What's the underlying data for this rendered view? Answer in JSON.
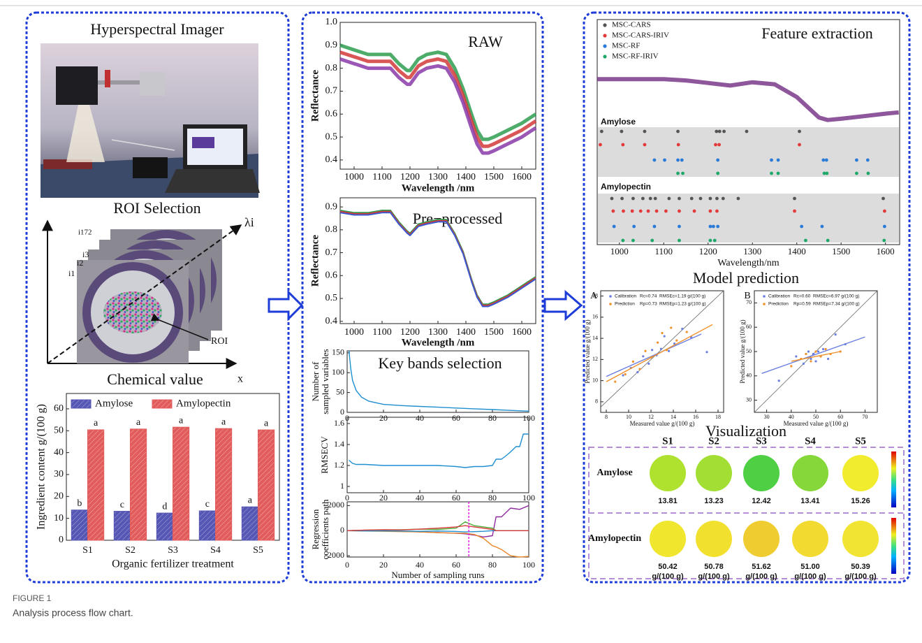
{
  "figure": {
    "label": "FIGURE 1",
    "caption": "Analysis process flow chart.",
    "acquisition": {
      "title": "Hyperspectral Imager",
      "roi_title": "ROI Selection",
      "chemical_title": "Chemical value",
      "roi_labels": {
        "lambda": "λi",
        "i172": "i172",
        "i3": "i3",
        "i2": "i2",
        "i1": "i1",
        "roi": "ROI",
        "axis": "x"
      }
    },
    "model_title": "Model prediction",
    "visualization": {
      "title": "Visualization",
      "columns": [
        "S1",
        "S2",
        "S3",
        "S4",
        "S5"
      ],
      "rows": [
        {
          "label": "Amylose",
          "values": [
            "13.81",
            "13.23",
            "12.42",
            "13.41",
            "15.26"
          ],
          "colors": [
            "#aee22e",
            "#a2de34",
            "#4ecf44",
            "#86d83a",
            "#f2ec2e"
          ]
        },
        {
          "label": "Amylopectin",
          "values": [
            "50.42",
            "50.78",
            "51.62",
            "51.00",
            "50.39"
          ],
          "unit": "g/(100 g)",
          "colors": [
            "#f0e62e",
            "#f2e02e",
            "#efcc30",
            "#f2da30",
            "#f2e432"
          ]
        }
      ]
    }
  },
  "chart_data": [
    {
      "type": "bar",
      "xlabel": "Organic fertilizer treatment",
      "ylabel": "Ingredient content g/(100 g)",
      "categories": [
        "S1",
        "S2",
        "S3",
        "S4",
        "S5"
      ],
      "series": [
        {
          "name": "Amylose",
          "color": "#5656b4",
          "values": [
            13.81,
            13.23,
            12.42,
            13.41,
            15.26
          ],
          "annotations": [
            "b",
            "c",
            "d",
            "c",
            "a"
          ]
        },
        {
          "name": "Amylopectin",
          "color": "#e25c5c",
          "values": [
            50.42,
            50.78,
            51.62,
            51.0,
            50.39
          ],
          "annotations": [
            "a",
            "a",
            "a",
            "a",
            "a"
          ]
        }
      ],
      "ylim": [
        0,
        67
      ],
      "yticks": [
        0,
        10,
        20,
        30,
        40,
        50,
        60
      ]
    },
    {
      "type": "line",
      "title": "RAW",
      "xlabel": "Wavelength /nm",
      "ylabel": "Reflectance",
      "x": [
        950,
        1000,
        1050,
        1100,
        1130,
        1160,
        1190,
        1200,
        1230,
        1260,
        1300,
        1330,
        1360,
        1390,
        1420,
        1440,
        1460,
        1480,
        1500,
        1550,
        1600,
        1650
      ],
      "series": [
        {
          "color": "#2f9e50",
          "values": [
            0.9,
            0.88,
            0.86,
            0.86,
            0.86,
            0.82,
            0.79,
            0.79,
            0.84,
            0.86,
            0.87,
            0.86,
            0.8,
            0.71,
            0.6,
            0.53,
            0.49,
            0.49,
            0.5,
            0.53,
            0.56,
            0.6
          ]
        },
        {
          "color": "#d23a3a",
          "values": [
            0.87,
            0.85,
            0.83,
            0.83,
            0.83,
            0.79,
            0.76,
            0.76,
            0.81,
            0.83,
            0.84,
            0.83,
            0.77,
            0.68,
            0.57,
            0.5,
            0.46,
            0.46,
            0.47,
            0.5,
            0.53,
            0.57
          ]
        },
        {
          "color": "#8a3aa8",
          "values": [
            0.84,
            0.82,
            0.8,
            0.8,
            0.8,
            0.76,
            0.73,
            0.73,
            0.78,
            0.8,
            0.81,
            0.8,
            0.74,
            0.65,
            0.54,
            0.47,
            0.43,
            0.43,
            0.44,
            0.47,
            0.5,
            0.54
          ]
        }
      ],
      "xlim": [
        950,
        1650
      ],
      "xticks": [
        1000,
        1100,
        1200,
        1300,
        1400,
        1500,
        1600
      ],
      "ylim": [
        0.36,
        1.0
      ],
      "yticks": [
        0.4,
        0.5,
        0.6,
        0.7,
        0.8,
        0.9,
        {
          "value": 1.0,
          "label": "1.0"
        }
      ]
    },
    {
      "type": "line",
      "title": "Pre−processed",
      "xlabel": "Wavelength /nm",
      "ylabel": "Reflectance",
      "x": [
        950,
        1000,
        1050,
        1100,
        1130,
        1160,
        1190,
        1200,
        1230,
        1260,
        1300,
        1330,
        1360,
        1390,
        1420,
        1440,
        1460,
        1480,
        1500,
        1550,
        1600,
        1650
      ],
      "series": [
        {
          "color": "#2f9e50",
          "values": [
            0.885,
            0.875,
            0.875,
            0.885,
            0.885,
            0.835,
            0.795,
            0.785,
            0.825,
            0.835,
            0.845,
            0.845,
            0.785,
            0.705,
            0.585,
            0.515,
            0.475,
            0.475,
            0.485,
            0.515,
            0.555,
            0.595
          ]
        },
        {
          "color": "#d23a3a",
          "values": [
            0.88,
            0.87,
            0.87,
            0.88,
            0.88,
            0.83,
            0.79,
            0.78,
            0.82,
            0.83,
            0.84,
            0.84,
            0.78,
            0.7,
            0.58,
            0.51,
            0.47,
            0.47,
            0.48,
            0.51,
            0.55,
            0.59
          ]
        },
        {
          "color": "#3a5ad0",
          "values": [
            0.875,
            0.865,
            0.865,
            0.875,
            0.875,
            0.825,
            0.785,
            0.775,
            0.815,
            0.825,
            0.835,
            0.835,
            0.775,
            0.695,
            0.575,
            0.505,
            0.465,
            0.465,
            0.475,
            0.505,
            0.545,
            0.585
          ]
        }
      ],
      "xlim": [
        950,
        1650
      ],
      "xticks": [
        1000,
        1100,
        1200,
        1300,
        1400,
        1500,
        1600
      ],
      "ylim": [
        0.39,
        0.94
      ],
      "yticks": [
        0.4,
        0.5,
        0.6,
        0.7,
        0.8,
        0.9
      ]
    },
    {
      "type": "line",
      "title": "Key bands selection",
      "ylabel": [
        "Number of",
        "sampled variables"
      ],
      "x": [
        1,
        2,
        3,
        5,
        8,
        12,
        20,
        30,
        40,
        50,
        60,
        70,
        80,
        90,
        100
      ],
      "series": [
        {
          "color": "#1f8fd0",
          "values": [
            155,
            110,
            80,
            55,
            38,
            28,
            20,
            17,
            15,
            13,
            11,
            9,
            7,
            5,
            3
          ]
        }
      ],
      "xlim": [
        0,
        100
      ],
      "xticks": [
        0,
        20,
        40,
        60,
        80,
        100
      ],
      "ylim": [
        0,
        155
      ],
      "yticks": [
        0,
        50,
        100,
        150
      ]
    },
    {
      "type": "line",
      "ylabel": "RMSECV",
      "x": [
        1,
        3,
        5,
        10,
        20,
        30,
        40,
        50,
        60,
        65,
        70,
        75,
        80,
        82,
        85,
        88,
        90,
        93,
        95,
        97,
        100
      ],
      "series": [
        {
          "color": "#1f8fd0",
          "values": [
            1.25,
            1.22,
            1.21,
            1.21,
            1.2,
            1.2,
            1.2,
            1.2,
            1.19,
            1.18,
            1.19,
            1.19,
            1.2,
            1.26,
            1.26,
            1.3,
            1.33,
            1.38,
            1.38,
            1.5,
            1.5
          ]
        }
      ],
      "xlim": [
        0,
        100
      ],
      "xticks": [
        0,
        20,
        40,
        60,
        80,
        100
      ],
      "ylim": [
        0.94,
        1.66
      ],
      "yticks": [
        1,
        1.2,
        1.4,
        1.6
      ]
    },
    {
      "type": "line",
      "ylabel": [
        "Regression",
        "coefficients path"
      ],
      "xlabel": "Number of sampling runs",
      "x": [
        0,
        10,
        20,
        30,
        40,
        50,
        60,
        65,
        70,
        75,
        80,
        82,
        85,
        90,
        95,
        100
      ],
      "series": [
        {
          "color": "#8e2a9e",
          "values": [
            0,
            20,
            10,
            -50,
            -100,
            -150,
            -200,
            -250,
            -350,
            -500,
            -400,
            1100,
            1100,
            1800,
            1700,
            2000
          ]
        },
        {
          "color": "#e8862a",
          "values": [
            0,
            -30,
            -50,
            -80,
            -100,
            -150,
            -200,
            -200,
            -300,
            -600,
            -1200,
            -1300,
            -1500,
            -2000,
            -2100,
            -2050
          ]
        },
        {
          "color": "#4cae3a",
          "values": [
            0,
            40,
            60,
            80,
            120,
            100,
            200,
            700,
            400,
            300,
            200,
            0,
            0,
            0,
            0,
            0
          ]
        },
        {
          "color": "#1f8fd0",
          "values": [
            0,
            -20,
            -10,
            -30,
            -50,
            -30,
            -60,
            -100,
            -80,
            -50,
            0,
            0,
            0,
            0,
            0,
            0
          ]
        },
        {
          "color": "#d83a3a",
          "values": [
            0,
            50,
            80,
            60,
            120,
            200,
            300,
            400,
            300,
            200,
            100,
            0,
            0,
            0,
            0,
            0
          ]
        }
      ],
      "marker_x": 67,
      "xlim": [
        0,
        100
      ],
      "xticks": [
        0,
        20,
        40,
        60,
        80,
        100
      ],
      "ylim": [
        -2100,
        2300
      ],
      "yticks": [
        -2000,
        0,
        2000
      ]
    },
    {
      "type": "feature",
      "title": "Feature extraction",
      "xlabel": "Wavelength/nm",
      "xlim": [
        950,
        1632
      ],
      "xticks": [
        1000,
        1100,
        1200,
        1300,
        1400,
        1500,
        1600
      ],
      "spectrum": {
        "color": "#7a3a8a",
        "x": [
          950,
          1000,
          1100,
          1150,
          1200,
          1250,
          1300,
          1350,
          1400,
          1450,
          1470,
          1500,
          1550,
          1600,
          1630
        ],
        "values": [
          0.79,
          0.79,
          0.79,
          0.785,
          0.775,
          0.765,
          0.778,
          0.77,
          0.72,
          0.64,
          0.63,
          0.635,
          0.645,
          0.655,
          0.66
        ]
      },
      "ylim": [
        0.58,
        0.84
      ],
      "groups": [
        "Amylose",
        "Amylopectin"
      ],
      "series": [
        {
          "name": "MSC-CARS",
          "color": "#555555",
          "positions": [
            [
              960,
              1005,
              1057,
              1132,
              1219,
              1226,
              1236,
              1287,
              1406
            ],
            [
              983,
              1006,
              1031,
              1053,
              1070,
              1081,
              1112,
              1135,
              1163,
              1183,
              1205,
              1220,
              1234,
              1268,
              1395,
              1595
            ]
          ]
        },
        {
          "name": "MSC-CARS-IRIV",
          "color": "#e23a3a",
          "positions": [
            [
              957,
              1008,
              1057,
              1133,
              1217,
              1225,
              1406
            ],
            [
              986,
              1009,
              1029,
              1048,
              1065,
              1084,
              1105,
              1135,
              1169,
              1205,
              1220,
              1395,
              1598
            ]
          ]
        },
        {
          "name": "MSC-RF",
          "color": "#2a7ad8",
          "positions": [
            [
              1079,
              1102,
              1132,
              1141,
              1222,
              1343,
              1358,
              1460,
              1467,
              1535,
              1560
            ],
            [
              988,
              1033,
              1079,
              1135,
              1205,
              1212,
              1222,
              1411,
              1457,
              1598
            ]
          ]
        },
        {
          "name": "MSC-RF-IRIV",
          "color": "#1fa86a",
          "positions": [
            [
              1132,
              1143,
              1222,
              1343,
              1358,
              1462,
              1468,
              1535,
              1561
            ],
            [
              1008,
              1031,
              1074,
              1135,
              1205,
              1215,
              1420,
              1470,
              1597
            ]
          ]
        }
      ]
    },
    {
      "type": "scatter",
      "panel": "A",
      "xlabel": "Measured value g/(100 g)",
      "ylabel": "Predicted value g/(100 g)",
      "xlim": [
        7.5,
        18.5
      ],
      "xticks": [
        8,
        10,
        12,
        14,
        16,
        18
      ],
      "ylim": [
        7,
        18.5
      ],
      "yticks": [
        8,
        10,
        12,
        14,
        16,
        18
      ],
      "series": [
        {
          "name": "Calibration",
          "r": "Rc=0.74",
          "rmse": "RMSEc=1.19 g/(100 g)",
          "color": "#6a7ee0",
          "x": [
            9.5,
            10.2,
            10.8,
            11.3,
            11.8,
            12.1,
            12.5,
            12.9,
            13.2,
            13.6,
            14.1,
            14.8,
            15.6,
            17.0
          ],
          "values": [
            10.5,
            11.2,
            10.8,
            12.3,
            11.6,
            12.9,
            12.4,
            13.0,
            14.2,
            12.8,
            13.5,
            14.9,
            14.1,
            12.7
          ],
          "fit": {
            "x": [
              8,
              16.5
            ],
            "values": [
              10.4,
              14.4
            ]
          }
        },
        {
          "name": "Prediction",
          "r": "Rp=0.73",
          "rmse": "RMSEp=1.23 g/(100 g)",
          "color": "#f0902a",
          "x": [
            8.8,
            9.7,
            10.4,
            11.0,
            11.5,
            12.0,
            12.6,
            13.0,
            13.4,
            13.8,
            14.3,
            15.2
          ],
          "values": [
            9.9,
            10.6,
            11.8,
            11.1,
            12.8,
            12.2,
            13.6,
            14.5,
            12.9,
            15.0,
            13.8,
            14.6
          ],
          "fit": {
            "x": [
              8,
              17.5
            ],
            "values": [
              9.9,
              15.3
            ]
          }
        }
      ]
    },
    {
      "type": "scatter",
      "panel": "B",
      "xlabel": "Measured value g/(100 g)",
      "ylabel": "Predicted value g/(100 g)",
      "xlim": [
        25,
        75
      ],
      "xticks": [
        30,
        40,
        50,
        60,
        70
      ],
      "ylim": [
        25,
        75
      ],
      "yticks": [
        30,
        40,
        50,
        60,
        70
      ],
      "series": [
        {
          "name": "Calibration",
          "r": "Rc=0.60",
          "rmse": "RMSEc=6.97 g/(100 g)",
          "color": "#6a7ee0",
          "x": [
            35,
            42,
            45,
            47,
            48,
            49,
            50,
            51,
            52,
            53,
            55,
            58,
            62
          ],
          "values": [
            38,
            48,
            45,
            50,
            47,
            49,
            46,
            50,
            48,
            51,
            47,
            57,
            53
          ],
          "fit": {
            "x": [
              28,
              70
            ],
            "values": [
              41,
              56
            ]
          }
        },
        {
          "name": "Prediction",
          "r": "Rp=0.59",
          "rmse": "RMSEp=7.34 g/(100 g)",
          "color": "#f0902a",
          "x": [
            40,
            44,
            46,
            48,
            50,
            52,
            54,
            56,
            60
          ],
          "values": [
            44,
            47,
            49,
            46,
            50,
            48,
            51,
            49,
            50
          ],
          "fit": {
            "x": [
              40,
              60
            ],
            "values": [
              46,
              50
            ]
          }
        }
      ]
    }
  ]
}
